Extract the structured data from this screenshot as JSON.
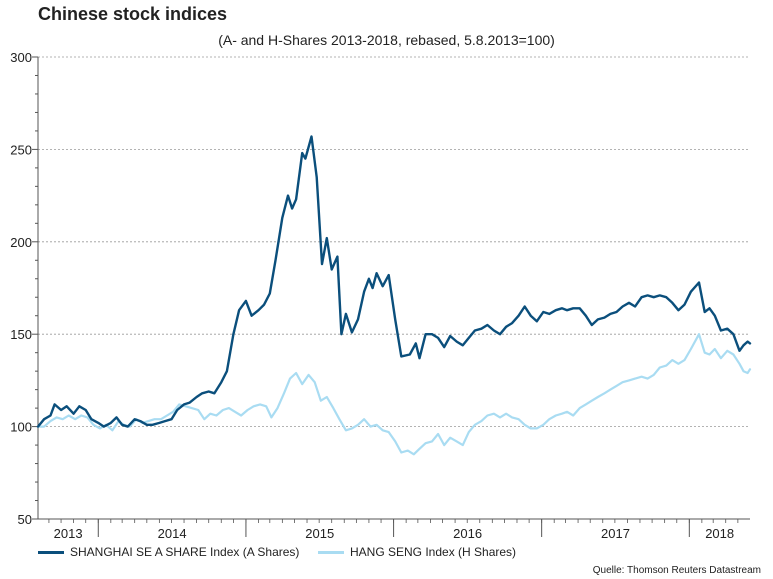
{
  "header": {
    "title": "Chinese stock indices",
    "subtitle": "(A- and H-Shares 2013-2018, rebased, 5.8.2013=100)"
  },
  "footer": {
    "source": "Quelle: Thomson Reuters Datastream"
  },
  "colors": {
    "series_a": "#0b4f7c",
    "series_h": "#a9dcf2",
    "grid": "#9a9a9a",
    "axis": "#555555"
  },
  "chart_data": {
    "type": "line",
    "title": "Chinese stock indices",
    "subtitle": "(A- and H-Shares 2013-2018, rebased, 5.8.2013=100)",
    "xlabel": "",
    "ylabel": "",
    "ylim": [
      50,
      300
    ],
    "yticks": [
      50,
      100,
      150,
      200,
      250,
      300
    ],
    "xlim": [
      "2013-08-05",
      "2018-05-31"
    ],
    "xtick_labels": [
      "2013",
      "2014",
      "2015",
      "2016",
      "2017",
      "2018"
    ],
    "year_starts": [
      "2014-01-01",
      "2015-01-01",
      "2016-01-01",
      "2017-01-01",
      "2018-01-01"
    ],
    "grid": true,
    "legend_position": "bottom",
    "series": [
      {
        "name": "SHANGHAI SE A SHARE Index (A Shares)",
        "color": "#0b4f7c",
        "points": [
          [
            "2013-08-05",
            100
          ],
          [
            "2013-08-20",
            104
          ],
          [
            "2013-09-05",
            106
          ],
          [
            "2013-09-15",
            112
          ],
          [
            "2013-10-01",
            109
          ],
          [
            "2013-10-15",
            111
          ],
          [
            "2013-11-01",
            107
          ],
          [
            "2013-11-15",
            111
          ],
          [
            "2013-12-01",
            109
          ],
          [
            "2013-12-15",
            104
          ],
          [
            "2014-01-01",
            102
          ],
          [
            "2014-01-15",
            100
          ],
          [
            "2014-02-01",
            102
          ],
          [
            "2014-02-15",
            105
          ],
          [
            "2014-03-01",
            101
          ],
          [
            "2014-03-15",
            100
          ],
          [
            "2014-04-01",
            104
          ],
          [
            "2014-04-15",
            103
          ],
          [
            "2014-05-01",
            101
          ],
          [
            "2014-05-15",
            101
          ],
          [
            "2014-06-01",
            102
          ],
          [
            "2014-06-15",
            103
          ],
          [
            "2014-07-01",
            104
          ],
          [
            "2014-07-15",
            109
          ],
          [
            "2014-08-01",
            112
          ],
          [
            "2014-08-15",
            113
          ],
          [
            "2014-09-01",
            116
          ],
          [
            "2014-09-15",
            118
          ],
          [
            "2014-10-01",
            119
          ],
          [
            "2014-10-15",
            118
          ],
          [
            "2014-11-01",
            124
          ],
          [
            "2014-11-15",
            130
          ],
          [
            "2014-12-01",
            150
          ],
          [
            "2014-12-15",
            163
          ],
          [
            "2015-01-01",
            168
          ],
          [
            "2015-01-15",
            160
          ],
          [
            "2015-02-01",
            163
          ],
          [
            "2015-02-15",
            166
          ],
          [
            "2015-03-01",
            172
          ],
          [
            "2015-03-15",
            190
          ],
          [
            "2015-04-01",
            213
          ],
          [
            "2015-04-15",
            225
          ],
          [
            "2015-04-25",
            218
          ],
          [
            "2015-05-05",
            223
          ],
          [
            "2015-05-20",
            248
          ],
          [
            "2015-05-28",
            245
          ],
          [
            "2015-06-12",
            257
          ],
          [
            "2015-06-25",
            235
          ],
          [
            "2015-07-08",
            188
          ],
          [
            "2015-07-20",
            202
          ],
          [
            "2015-08-01",
            185
          ],
          [
            "2015-08-15",
            192
          ],
          [
            "2015-08-25",
            150
          ],
          [
            "2015-09-05",
            161
          ],
          [
            "2015-09-20",
            151
          ],
          [
            "2015-10-05",
            158
          ],
          [
            "2015-10-20",
            173
          ],
          [
            "2015-11-01",
            180
          ],
          [
            "2015-11-10",
            175
          ],
          [
            "2015-11-20",
            183
          ],
          [
            "2015-12-05",
            176
          ],
          [
            "2015-12-20",
            182
          ],
          [
            "2016-01-05",
            158
          ],
          [
            "2016-01-20",
            138
          ],
          [
            "2016-02-10",
            139
          ],
          [
            "2016-02-25",
            145
          ],
          [
            "2016-03-05",
            137
          ],
          [
            "2016-03-20",
            150
          ],
          [
            "2016-04-05",
            150
          ],
          [
            "2016-04-20",
            148
          ],
          [
            "2016-05-05",
            143
          ],
          [
            "2016-05-20",
            149
          ],
          [
            "2016-06-05",
            146
          ],
          [
            "2016-06-20",
            144
          ],
          [
            "2016-07-05",
            148
          ],
          [
            "2016-07-20",
            152
          ],
          [
            "2016-08-05",
            153
          ],
          [
            "2016-08-20",
            155
          ],
          [
            "2016-09-05",
            152
          ],
          [
            "2016-09-20",
            150
          ],
          [
            "2016-10-05",
            154
          ],
          [
            "2016-10-20",
            156
          ],
          [
            "2016-11-05",
            160
          ],
          [
            "2016-11-20",
            165
          ],
          [
            "2016-12-05",
            160
          ],
          [
            "2016-12-20",
            157
          ],
          [
            "2017-01-05",
            162
          ],
          [
            "2017-01-20",
            161
          ],
          [
            "2017-02-05",
            163
          ],
          [
            "2017-02-20",
            164
          ],
          [
            "2017-03-05",
            163
          ],
          [
            "2017-03-20",
            164
          ],
          [
            "2017-04-05",
            164
          ],
          [
            "2017-04-20",
            160
          ],
          [
            "2017-05-05",
            155
          ],
          [
            "2017-05-20",
            158
          ],
          [
            "2017-06-05",
            159
          ],
          [
            "2017-06-20",
            161
          ],
          [
            "2017-07-05",
            162
          ],
          [
            "2017-07-20",
            165
          ],
          [
            "2017-08-05",
            167
          ],
          [
            "2017-08-20",
            165
          ],
          [
            "2017-09-05",
            170
          ],
          [
            "2017-09-20",
            171
          ],
          [
            "2017-10-05",
            170
          ],
          [
            "2017-10-20",
            171
          ],
          [
            "2017-11-05",
            170
          ],
          [
            "2017-11-20",
            167
          ],
          [
            "2017-12-05",
            163
          ],
          [
            "2017-12-20",
            166
          ],
          [
            "2018-01-05",
            173
          ],
          [
            "2018-01-25",
            178
          ],
          [
            "2018-02-08",
            162
          ],
          [
            "2018-02-20",
            164
          ],
          [
            "2018-03-05",
            160
          ],
          [
            "2018-03-20",
            152
          ],
          [
            "2018-04-05",
            153
          ],
          [
            "2018-04-20",
            150
          ],
          [
            "2018-05-05",
            141
          ],
          [
            "2018-05-15",
            144
          ],
          [
            "2018-05-25",
            146
          ],
          [
            "2018-05-31",
            145
          ]
        ]
      },
      {
        "name": "HANG SENG Index (H Shares)",
        "color": "#a9dcf2",
        "points": [
          [
            "2013-08-05",
            100
          ],
          [
            "2013-08-20",
            100
          ],
          [
            "2013-09-05",
            103
          ],
          [
            "2013-09-20",
            105
          ],
          [
            "2013-10-05",
            104
          ],
          [
            "2013-10-20",
            106
          ],
          [
            "2013-11-05",
            104
          ],
          [
            "2013-11-20",
            106
          ],
          [
            "2013-12-05",
            105
          ],
          [
            "2013-12-20",
            101
          ],
          [
            "2014-01-05",
            99
          ],
          [
            "2014-01-20",
            101
          ],
          [
            "2014-02-05",
            98
          ],
          [
            "2014-02-20",
            103
          ],
          [
            "2014-03-05",
            101
          ],
          [
            "2014-03-20",
            100
          ],
          [
            "2014-04-05",
            104
          ],
          [
            "2014-04-20",
            102
          ],
          [
            "2014-05-05",
            103
          ],
          [
            "2014-05-20",
            104
          ],
          [
            "2014-06-05",
            104
          ],
          [
            "2014-06-20",
            106
          ],
          [
            "2014-07-05",
            108
          ],
          [
            "2014-07-20",
            112
          ],
          [
            "2014-08-05",
            111
          ],
          [
            "2014-08-20",
            110
          ],
          [
            "2014-09-05",
            109
          ],
          [
            "2014-09-20",
            104
          ],
          [
            "2014-10-05",
            107
          ],
          [
            "2014-10-20",
            106
          ],
          [
            "2014-11-05",
            109
          ],
          [
            "2014-11-20",
            110
          ],
          [
            "2014-12-05",
            108
          ],
          [
            "2014-12-20",
            106
          ],
          [
            "2015-01-05",
            109
          ],
          [
            "2015-01-20",
            111
          ],
          [
            "2015-02-05",
            112
          ],
          [
            "2015-02-20",
            111
          ],
          [
            "2015-03-05",
            105
          ],
          [
            "2015-03-20",
            110
          ],
          [
            "2015-04-05",
            118
          ],
          [
            "2015-04-20",
            126
          ],
          [
            "2015-05-05",
            129
          ],
          [
            "2015-05-20",
            123
          ],
          [
            "2015-06-05",
            128
          ],
          [
            "2015-06-20",
            124
          ],
          [
            "2015-07-05",
            114
          ],
          [
            "2015-07-20",
            116
          ],
          [
            "2015-08-05",
            110
          ],
          [
            "2015-08-20",
            104
          ],
          [
            "2015-09-05",
            98
          ],
          [
            "2015-09-20",
            99
          ],
          [
            "2015-10-05",
            101
          ],
          [
            "2015-10-20",
            104
          ],
          [
            "2015-11-05",
            100
          ],
          [
            "2015-11-20",
            101
          ],
          [
            "2015-12-05",
            98
          ],
          [
            "2015-12-20",
            97
          ],
          [
            "2016-01-05",
            92
          ],
          [
            "2016-01-20",
            86
          ],
          [
            "2016-02-05",
            87
          ],
          [
            "2016-02-20",
            85
          ],
          [
            "2016-03-05",
            88
          ],
          [
            "2016-03-20",
            91
          ],
          [
            "2016-04-05",
            92
          ],
          [
            "2016-04-20",
            96
          ],
          [
            "2016-05-05",
            90
          ],
          [
            "2016-05-20",
            94
          ],
          [
            "2016-06-05",
            92
          ],
          [
            "2016-06-20",
            90
          ],
          [
            "2016-07-05",
            97
          ],
          [
            "2016-07-20",
            101
          ],
          [
            "2016-08-05",
            103
          ],
          [
            "2016-08-20",
            106
          ],
          [
            "2016-09-05",
            107
          ],
          [
            "2016-09-20",
            105
          ],
          [
            "2016-10-05",
            107
          ],
          [
            "2016-10-20",
            105
          ],
          [
            "2016-11-05",
            104
          ],
          [
            "2016-11-20",
            101
          ],
          [
            "2016-12-05",
            99
          ],
          [
            "2016-12-20",
            99
          ],
          [
            "2017-01-05",
            101
          ],
          [
            "2017-01-20",
            104
          ],
          [
            "2017-02-05",
            106
          ],
          [
            "2017-02-20",
            107
          ],
          [
            "2017-03-05",
            108
          ],
          [
            "2017-03-20",
            106
          ],
          [
            "2017-04-05",
            110
          ],
          [
            "2017-04-20",
            112
          ],
          [
            "2017-05-05",
            114
          ],
          [
            "2017-05-20",
            116
          ],
          [
            "2017-06-05",
            118
          ],
          [
            "2017-06-20",
            120
          ],
          [
            "2017-07-05",
            122
          ],
          [
            "2017-07-20",
            124
          ],
          [
            "2017-08-05",
            125
          ],
          [
            "2017-08-20",
            126
          ],
          [
            "2017-09-05",
            127
          ],
          [
            "2017-09-20",
            126
          ],
          [
            "2017-10-05",
            128
          ],
          [
            "2017-10-20",
            132
          ],
          [
            "2017-11-05",
            133
          ],
          [
            "2017-11-20",
            136
          ],
          [
            "2017-12-05",
            134
          ],
          [
            "2017-12-20",
            136
          ],
          [
            "2018-01-05",
            142
          ],
          [
            "2018-01-25",
            150
          ],
          [
            "2018-02-08",
            140
          ],
          [
            "2018-02-20",
            139
          ],
          [
            "2018-03-05",
            142
          ],
          [
            "2018-03-20",
            137
          ],
          [
            "2018-04-05",
            141
          ],
          [
            "2018-04-20",
            139
          ],
          [
            "2018-05-05",
            134
          ],
          [
            "2018-05-15",
            130
          ],
          [
            "2018-05-25",
            129
          ],
          [
            "2018-05-31",
            131
          ]
        ]
      }
    ]
  }
}
